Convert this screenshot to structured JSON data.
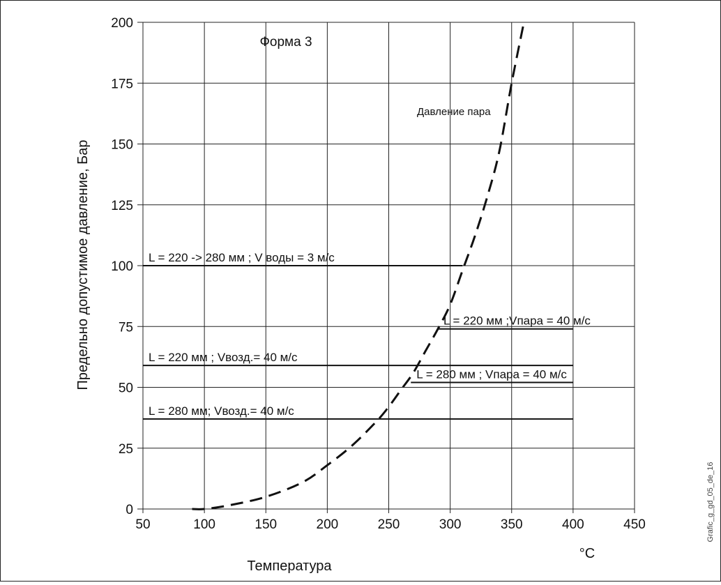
{
  "chart_data": {
    "type": "line",
    "title": "Форма 3",
    "xlabel": "Температура",
    "xunit": "°C",
    "ylabel": "Предельно допустимое давление, Бар",
    "xlim": [
      50,
      450
    ],
    "ylim": [
      0,
      200
    ],
    "x_ticks": [
      50,
      100,
      150,
      200,
      250,
      300,
      350,
      400,
      450
    ],
    "y_ticks": [
      0,
      25,
      50,
      75,
      100,
      125,
      150,
      175,
      200
    ],
    "grid": true,
    "series": [
      {
        "name": "Давление пара",
        "style": "dashed",
        "x": [
          90,
          100,
          120,
          150,
          180,
          200,
          220,
          240,
          250,
          260,
          270,
          280,
          290,
          300,
          310,
          320,
          330,
          340,
          350,
          360
        ],
        "y": [
          0,
          0,
          1.5,
          5,
          11,
          18,
          26,
          36,
          42,
          49,
          56,
          65,
          74,
          84,
          98,
          112,
          128,
          147,
          175,
          200
        ]
      }
    ],
    "limit_lines": [
      {
        "label": "L = 220 -> 280 мм ;  V воды = 3  м/с",
        "y": 100,
        "x": [
          50,
          310
        ]
      },
      {
        "label": "L = 220 мм  ;Vпара    = 40 м/с",
        "y": 74,
        "x": [
          290,
          400
        ]
      },
      {
        "label": "L = 220 мм ; Vвозд.= 40 м/с",
        "y": 59,
        "x": [
          50,
          400
        ]
      },
      {
        "label": "L = 280  мм  ; Vпара    = 40 м/с",
        "y": 52,
        "x": [
          268,
          400
        ]
      },
      {
        "label": "L = 280 мм; Vвозд.= 40 м/с",
        "y": 37,
        "x": [
          50,
          400
        ]
      }
    ],
    "side_label": "Grafic_g_gd_05_de_16"
  }
}
